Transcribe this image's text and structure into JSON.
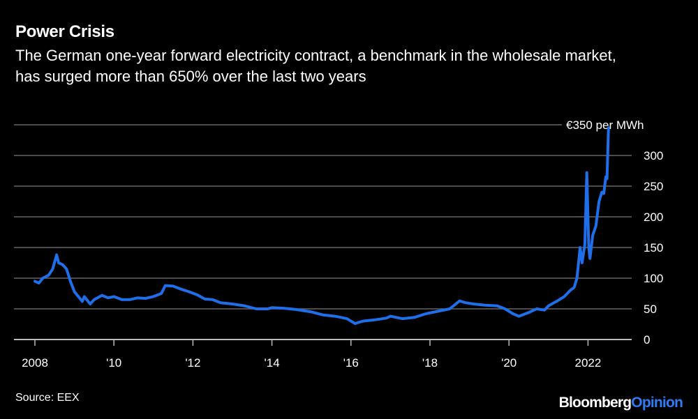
{
  "title": "Power Crisis",
  "subtitle": "The German one-year forward electricity contract, a benchmark in the wholesale market, has surged more than 650% over the last two years",
  "source": "Source: EEX",
  "brand": {
    "main": "Bloomberg",
    "accent": "Opinion"
  },
  "chart_data": {
    "type": "line",
    "title": "Power Crisis",
    "xlabel": "",
    "ylabel": "",
    "unit_label": "€350 per MWh",
    "xlim": [
      2007.5,
      2023.0
    ],
    "ylim": [
      0,
      350
    ],
    "grid": true,
    "line_color": "#1F6FEB",
    "x_ticks": [
      {
        "value": 2008,
        "label": "2008"
      },
      {
        "value": 2010,
        "label": "'10"
      },
      {
        "value": 2012,
        "label": "'12"
      },
      {
        "value": 2014,
        "label": "'14"
      },
      {
        "value": 2016,
        "label": "'16"
      },
      {
        "value": 2018,
        "label": "'18"
      },
      {
        "value": 2020,
        "label": "'20"
      },
      {
        "value": 2022,
        "label": "2022"
      }
    ],
    "y_ticks": [
      {
        "value": 0,
        "label": "0"
      },
      {
        "value": 50,
        "label": "50"
      },
      {
        "value": 100,
        "label": "100"
      },
      {
        "value": 150,
        "label": "150"
      },
      {
        "value": 200,
        "label": "200"
      },
      {
        "value": 250,
        "label": "250"
      },
      {
        "value": 300,
        "label": "300"
      },
      {
        "value": 350,
        "label": "€350 per MWh"
      }
    ],
    "series": [
      {
        "x": [
          2008.0,
          2008.1,
          2008.2,
          2008.35,
          2008.45,
          2008.55,
          2008.6,
          2008.7,
          2008.8,
          2008.9,
          2009.0,
          2009.1,
          2009.2,
          2009.25,
          2009.4,
          2009.5,
          2009.7,
          2009.85,
          2010.0,
          2010.2,
          2010.4,
          2010.6,
          2010.8,
          2011.0,
          2011.2,
          2011.3,
          2011.5,
          2011.7,
          2011.9,
          2012.1,
          2012.3,
          2012.5,
          2012.7,
          2013.0,
          2013.3,
          2013.6,
          2013.9,
          2014.0,
          2014.3,
          2014.6,
          2015.0,
          2015.3,
          2015.6,
          2015.9,
          2016.1,
          2016.3,
          2016.6,
          2016.9,
          2017.0,
          2017.3,
          2017.6,
          2017.9,
          2018.2,
          2018.5,
          2018.75,
          2018.9,
          2019.1,
          2019.4,
          2019.7,
          2019.9,
          2020.1,
          2020.25,
          2020.5,
          2020.7,
          2020.9,
          2021.0,
          2021.2,
          2021.4,
          2021.55,
          2021.65,
          2021.72,
          2021.8,
          2021.85,
          2021.92,
          2021.97,
          2022.02,
          2022.05,
          2022.12,
          2022.2,
          2022.28,
          2022.35,
          2022.4,
          2022.45,
          2022.48,
          2022.52
        ],
        "y": [
          95,
          92,
          100,
          105,
          115,
          138,
          125,
          122,
          115,
          95,
          78,
          70,
          62,
          70,
          58,
          65,
          72,
          68,
          70,
          65,
          65,
          68,
          67,
          70,
          75,
          88,
          87,
          82,
          78,
          73,
          66,
          65,
          60,
          58,
          55,
          50,
          50,
          52,
          51,
          49,
          45,
          40,
          38,
          34,
          26,
          30,
          32,
          35,
          38,
          34,
          36,
          42,
          46,
          50,
          63,
          60,
          58,
          56,
          55,
          50,
          42,
          38,
          44,
          50,
          48,
          55,
          62,
          70,
          80,
          85,
          100,
          150,
          125,
          155,
          272,
          150,
          132,
          170,
          185,
          225,
          240,
          238,
          265,
          262,
          345
        ]
      }
    ]
  }
}
